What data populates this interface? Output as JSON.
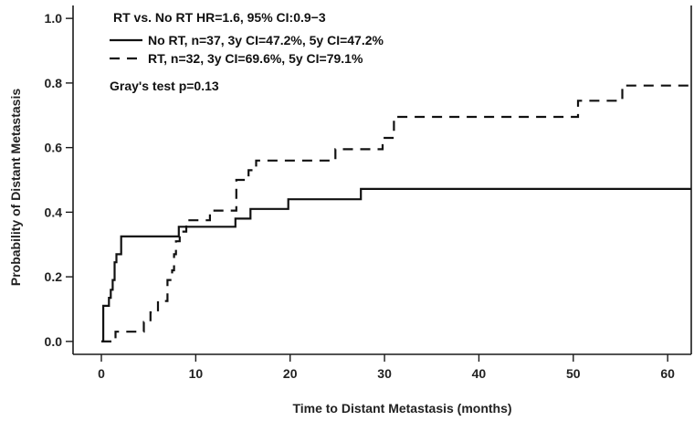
{
  "chart_data": {
    "type": "line",
    "title": "",
    "xlabel": "Time to Distant Metastasis (months)",
    "ylabel": "Probability of Distant Metastasis",
    "xlim": [
      -3,
      62.5
    ],
    "ylim": [
      -0.04,
      1.04
    ],
    "xticks": [
      0,
      10,
      20,
      30,
      40,
      50,
      60
    ],
    "yticks": [
      0.0,
      0.2,
      0.4,
      0.6,
      0.8,
      1.0
    ],
    "xtick_labels": [
      "0",
      "10",
      "20",
      "30",
      "40",
      "50",
      "60"
    ],
    "ytick_labels": [
      "0.0",
      "0.2",
      "0.4",
      "0.6",
      "0.8",
      "1.0"
    ],
    "grid": false,
    "legend_position": "top-left",
    "annotations": [
      "RT vs. No RT HR=1.6, 95% CI:0.9−3",
      "Gray's test p=0.13"
    ],
    "series": [
      {
        "name": "No RT, n=37, 3y CI=47.2%, 5y CI=47.2%",
        "line_style": "solid",
        "color": "#111111",
        "points": [
          [
            0,
            0.0
          ],
          [
            0.2,
            0.11
          ],
          [
            0.8,
            0.135
          ],
          [
            1.0,
            0.16
          ],
          [
            1.2,
            0.19
          ],
          [
            1.4,
            0.245
          ],
          [
            1.6,
            0.27
          ],
          [
            2.1,
            0.325
          ],
          [
            8.2,
            0.355
          ],
          [
            14.2,
            0.38
          ],
          [
            15.8,
            0.41
          ],
          [
            19.8,
            0.44
          ],
          [
            27.5,
            0.472
          ],
          [
            62.5,
            0.472
          ]
        ]
      },
      {
        "name": "RT, n=32, 3y CI=69.6%, 5y CI=79.1%",
        "line_style": "dashed",
        "color": "#111111",
        "points": [
          [
            0,
            0.0
          ],
          [
            1.5,
            0.03
          ],
          [
            4.5,
            0.06
          ],
          [
            5.2,
            0.09
          ],
          [
            6.0,
            0.125
          ],
          [
            7.0,
            0.19
          ],
          [
            7.5,
            0.22
          ],
          [
            7.7,
            0.27
          ],
          [
            7.9,
            0.31
          ],
          [
            8.3,
            0.34
          ],
          [
            9.0,
            0.375
          ],
          [
            11.5,
            0.405
          ],
          [
            14.3,
            0.5
          ],
          [
            15.6,
            0.53
          ],
          [
            16.4,
            0.56
          ],
          [
            24.8,
            0.595
          ],
          [
            29.8,
            0.63
          ],
          [
            31.0,
            0.695
          ],
          [
            50.5,
            0.745
          ],
          [
            55.2,
            0.792
          ],
          [
            62.5,
            0.792
          ]
        ]
      }
    ]
  }
}
